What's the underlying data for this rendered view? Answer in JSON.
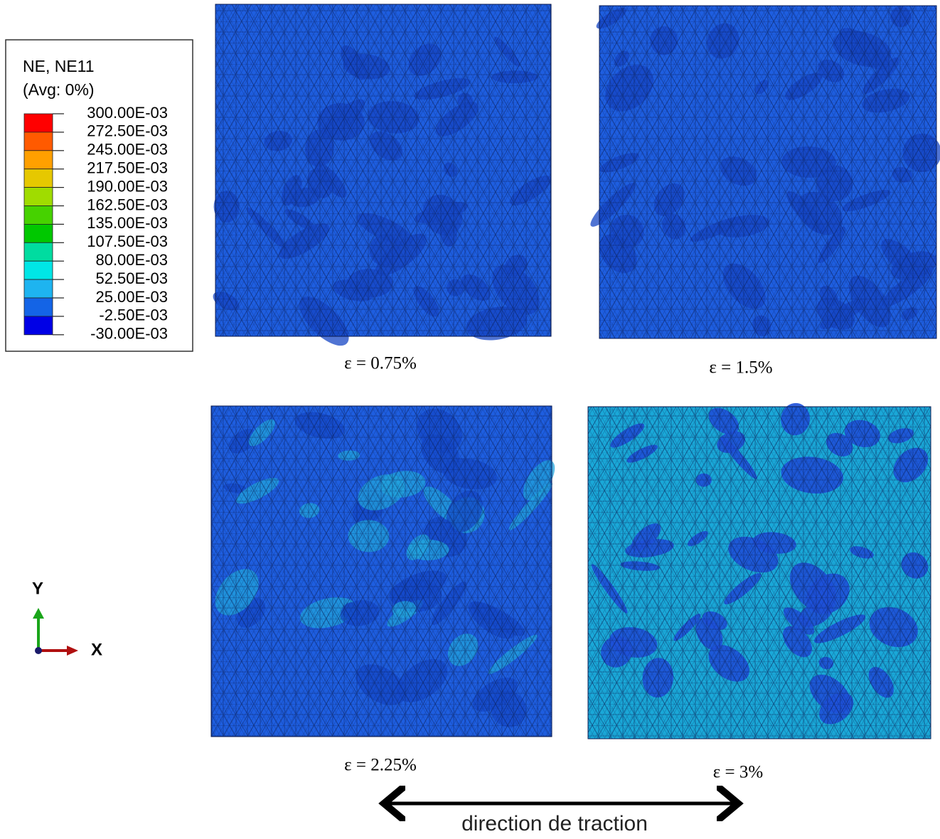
{
  "legend": {
    "title": "NE, NE11",
    "subtitle": "(Avg: 0%)",
    "labels": [
      "300.00E-03",
      "272.50E-03",
      "245.00E-03",
      "217.50E-03",
      "190.00E-03",
      "162.50E-03",
      "135.00E-03",
      "107.50E-03",
      "80.00E-03",
      "52.50E-03",
      "25.00E-03",
      "-2.50E-03",
      "-30.00E-03"
    ],
    "colors": [
      "#ff0000",
      "#ff5a00",
      "#ffa000",
      "#e6c800",
      "#a0dc00",
      "#46d200",
      "#00c800",
      "#00dca0",
      "#00e6e6",
      "#1eb4f0",
      "#1464e6",
      "#0000e6"
    ]
  },
  "panels": [
    {
      "caption": "ε = 0.75%"
    },
    {
      "caption": "ε = 1.5%"
    },
    {
      "caption": "ε = 2.25%"
    },
    {
      "caption": "ε = 3%"
    }
  ],
  "triad": {
    "y": "Y",
    "x": "X"
  },
  "arrow_label": "direction de traction"
}
